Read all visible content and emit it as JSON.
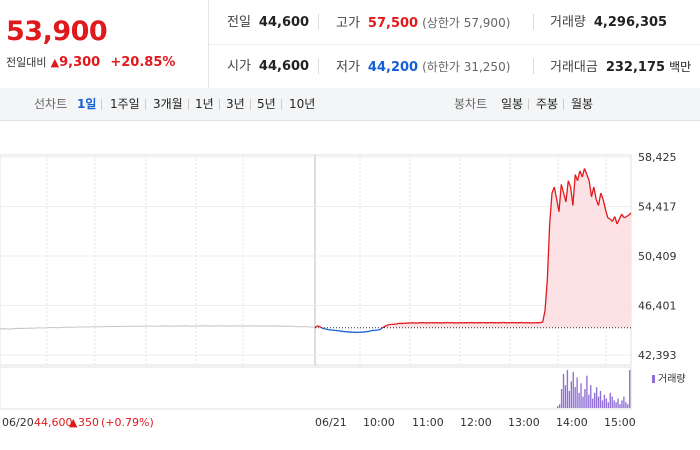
{
  "quote": {
    "price": "53,900",
    "change_label": "전일대비",
    "change_amount": "9,300",
    "change_rate": "+20.85%"
  },
  "stats": {
    "prev_close": {
      "label": "전일",
      "value": "44,600"
    },
    "high": {
      "label": "고가",
      "value": "57,500",
      "sub": "(상한가 57,900)"
    },
    "volume": {
      "label": "거래량",
      "value": "4,296,305"
    },
    "open": {
      "label": "시가",
      "value": "44,600"
    },
    "low": {
      "label": "저가",
      "value": "44,200",
      "sub": "(하한가 31,250)"
    },
    "trade_value": {
      "label": "거래대금",
      "value": "232,175",
      "unit": "백만"
    }
  },
  "tabs": {
    "line_label": "선차트",
    "line_periods": [
      "1일",
      "1주일",
      "3개월",
      "1년",
      "3년",
      "5년",
      "10년"
    ],
    "line_active": "1일",
    "candle_label": "봉차트",
    "candle_periods": [
      "일봉",
      "주봉",
      "월봉"
    ]
  },
  "chart_data": {
    "type": "line",
    "y_ticks": [
      "58,425",
      "54,417",
      "50,409",
      "46,401",
      "42,393"
    ],
    "ylim": [
      42393,
      58425
    ],
    "reference_price": 44600,
    "x_labels": [
      "06/20",
      "06/21",
      "10:00",
      "11:00",
      "12:00",
      "13:00",
      "14:00",
      "15:00"
    ],
    "prev_day_footer": {
      "date": "06/20",
      "price": "44,600",
      "change": "350",
      "rate": "(+0.79%)"
    },
    "volume_legend": "거래량",
    "series": [
      {
        "values_prev_day": [
          44500,
          44520,
          44480,
          44530,
          44550,
          44540,
          44570,
          44560,
          44600,
          44580,
          44610,
          44620,
          44600,
          44630,
          44650,
          44640,
          44660,
          44670,
          44650,
          44680,
          44690,
          44670,
          44700,
          44690,
          44710,
          44700,
          44720,
          44710,
          44730,
          44720,
          44740,
          44730,
          44720,
          44740,
          44750,
          44740,
          44730,
          44750,
          44760,
          44740,
          44730,
          44750,
          44760,
          44750,
          44740,
          44760,
          44750,
          44740,
          44760,
          44750,
          44740,
          44760,
          44750,
          44740,
          44760,
          44750,
          44740,
          44750,
          44730,
          44740,
          44720,
          44700,
          44680,
          44690,
          44660,
          44650
        ],
        "values_today": [
          44600,
          44750,
          44700,
          44580,
          44520,
          44480,
          44440,
          44420,
          44400,
          44380,
          44360,
          44330,
          44300,
          44280,
          44270,
          44250,
          44240,
          44230,
          44220,
          44230,
          44240,
          44250,
          44280,
          44300,
          44350,
          44400,
          44380,
          44420,
          44450,
          44600,
          44700,
          44800,
          44850,
          44870,
          44880,
          44900,
          44950,
          44960,
          44950,
          44970,
          44980,
          44990,
          45000,
          44990,
          44980,
          45000,
          45010,
          45000,
          44990,
          45000,
          45010,
          45000,
          45010,
          45000,
          44990,
          45000,
          45010,
          45020,
          45000,
          45010,
          45000,
          44990,
          45000,
          45010,
          45000,
          45010,
          45000,
          45020,
          45010,
          45000,
          45010,
          45000,
          45020,
          45010,
          45000,
          45010,
          45020,
          45000,
          45010,
          45000,
          45010,
          45020,
          45010,
          45000,
          45010,
          45020,
          45010,
          45000,
          45010,
          45020,
          45000,
          45010,
          45000,
          44990,
          45000,
          45010,
          45000,
          45020,
          45050,
          46000,
          48500,
          53000,
          55500,
          56000,
          55000,
          54000,
          56200,
          55500,
          54800,
          56500,
          56000,
          54500,
          57000,
          56500,
          57300,
          56800,
          57500,
          57000,
          56500,
          55200,
          56000,
          55000,
          54500,
          55500,
          55000,
          54200,
          53500,
          53400,
          53200,
          53600,
          53000,
          53400,
          53800,
          53500,
          53600,
          53700,
          53900
        ]
      }
    ],
    "volume_bars": [
      0.05,
      0.1,
      0.5,
      0.9,
      0.6,
      1.0,
      0.45,
      0.7,
      0.95,
      0.55,
      0.8,
      0.4,
      0.65,
      0.3,
      0.5,
      0.85,
      0.35,
      0.6,
      0.25,
      0.4,
      0.55,
      0.3,
      0.45,
      0.2,
      0.35,
      0.25,
      0.15,
      0.4,
      0.3,
      0.2,
      0.15,
      0.25,
      0.1,
      0.2,
      0.3,
      0.15,
      0.1,
      1.0
    ]
  }
}
